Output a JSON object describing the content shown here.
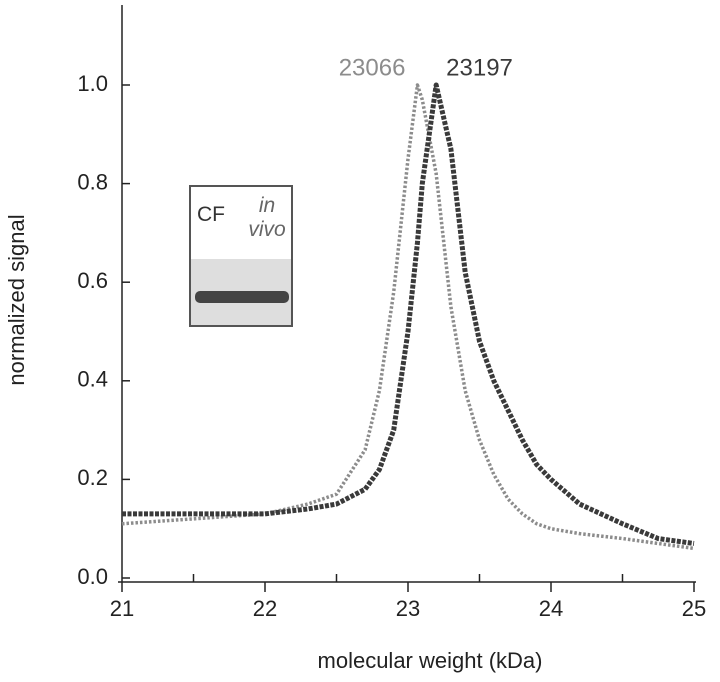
{
  "chart_data": {
    "type": "line",
    "xlabel": "molecular weight (kDa)",
    "ylabel": "normalized signal",
    "x": [
      21,
      21.5,
      22,
      22.3,
      22.5,
      22.7,
      22.8,
      22.9,
      23.0,
      23.066,
      23.1,
      23.197,
      23.3,
      23.4,
      23.5,
      23.6,
      23.7,
      23.8,
      23.9,
      24.0,
      24.2,
      24.5,
      24.75,
      25
    ],
    "series": [
      {
        "label": "23066",
        "color": "#8c8c8c",
        "values": [
          0.11,
          0.12,
          0.13,
          0.15,
          0.17,
          0.26,
          0.38,
          0.58,
          0.85,
          1.0,
          0.97,
          0.82,
          0.55,
          0.38,
          0.28,
          0.21,
          0.16,
          0.13,
          0.11,
          0.1,
          0.09,
          0.08,
          0.07,
          0.06
        ]
      },
      {
        "label": "23197",
        "color": "#3a3a3a",
        "values": [
          0.13,
          0.13,
          0.13,
          0.14,
          0.15,
          0.18,
          0.22,
          0.3,
          0.5,
          0.68,
          0.8,
          1.0,
          0.87,
          0.62,
          0.48,
          0.4,
          0.34,
          0.28,
          0.23,
          0.2,
          0.15,
          0.11,
          0.08,
          0.07
        ]
      }
    ],
    "xlim": [
      21,
      25
    ],
    "xticks": [
      21,
      22,
      23,
      24,
      25
    ],
    "xminorticks": [
      21.5,
      22.5,
      23.5,
      24.5
    ],
    "ylim": [
      0,
      1.16
    ],
    "yticks": [
      {
        "value": 0,
        "label": "0.0"
      },
      0.2,
      0.4,
      0.6,
      0.8,
      {
        "value": 1,
        "label": "1.0"
      }
    ],
    "inset": {
      "labels": [
        "CF",
        "in vivo"
      ]
    }
  }
}
